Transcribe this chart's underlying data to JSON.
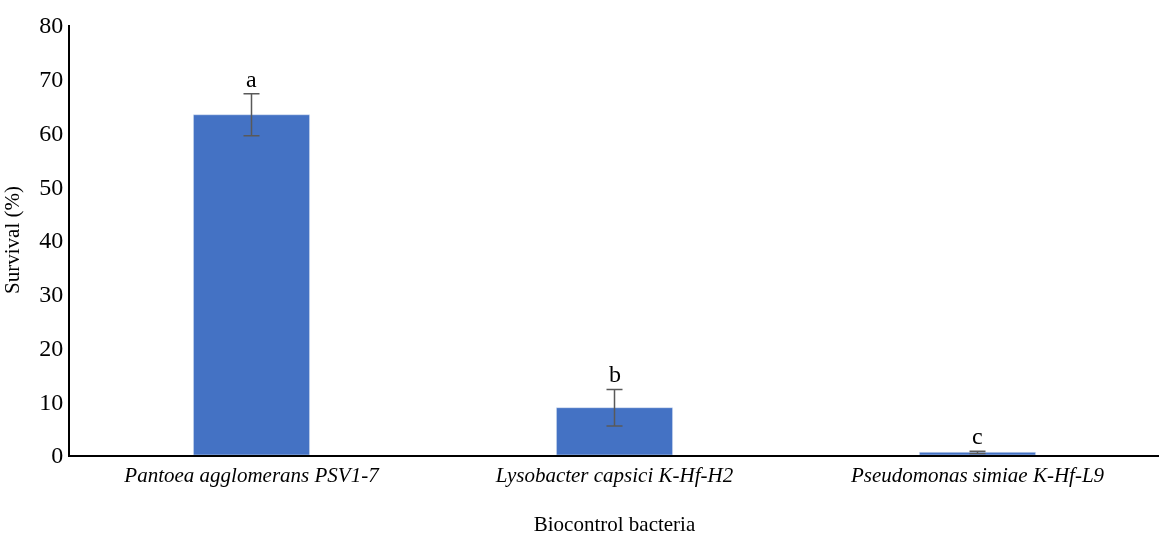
{
  "chart_data": {
    "type": "bar",
    "xlabel": "Biocontrol bacteria",
    "ylabel": "Survival (%)",
    "categories": [
      "Pantoea agglomerans PSV1-7",
      "Lysobacter capsici K-Hf-H2",
      "Pseudomonas simiae K-Hf-L9"
    ],
    "values": [
      63.3,
      8.8,
      0.5
    ],
    "errors": [
      3.9,
      3.4,
      0.2
    ],
    "color": "#4472c4",
    "ylim": [
      0,
      80
    ],
    "yticks": [
      0,
      10,
      20,
      30,
      40,
      50,
      60,
      70,
      80
    ],
    "annotations": [
      {
        "text": "a",
        "x": "Pantoea agglomerans PSV1-7",
        "y": 67.2
      },
      {
        "text": "b",
        "x": "Lysobacter capsici K-Hf-H2",
        "y": 12.2
      },
      {
        "text": "c",
        "x": "Pseudomonas simiae K-Hf-L9",
        "y": 0.7
      }
    ]
  }
}
